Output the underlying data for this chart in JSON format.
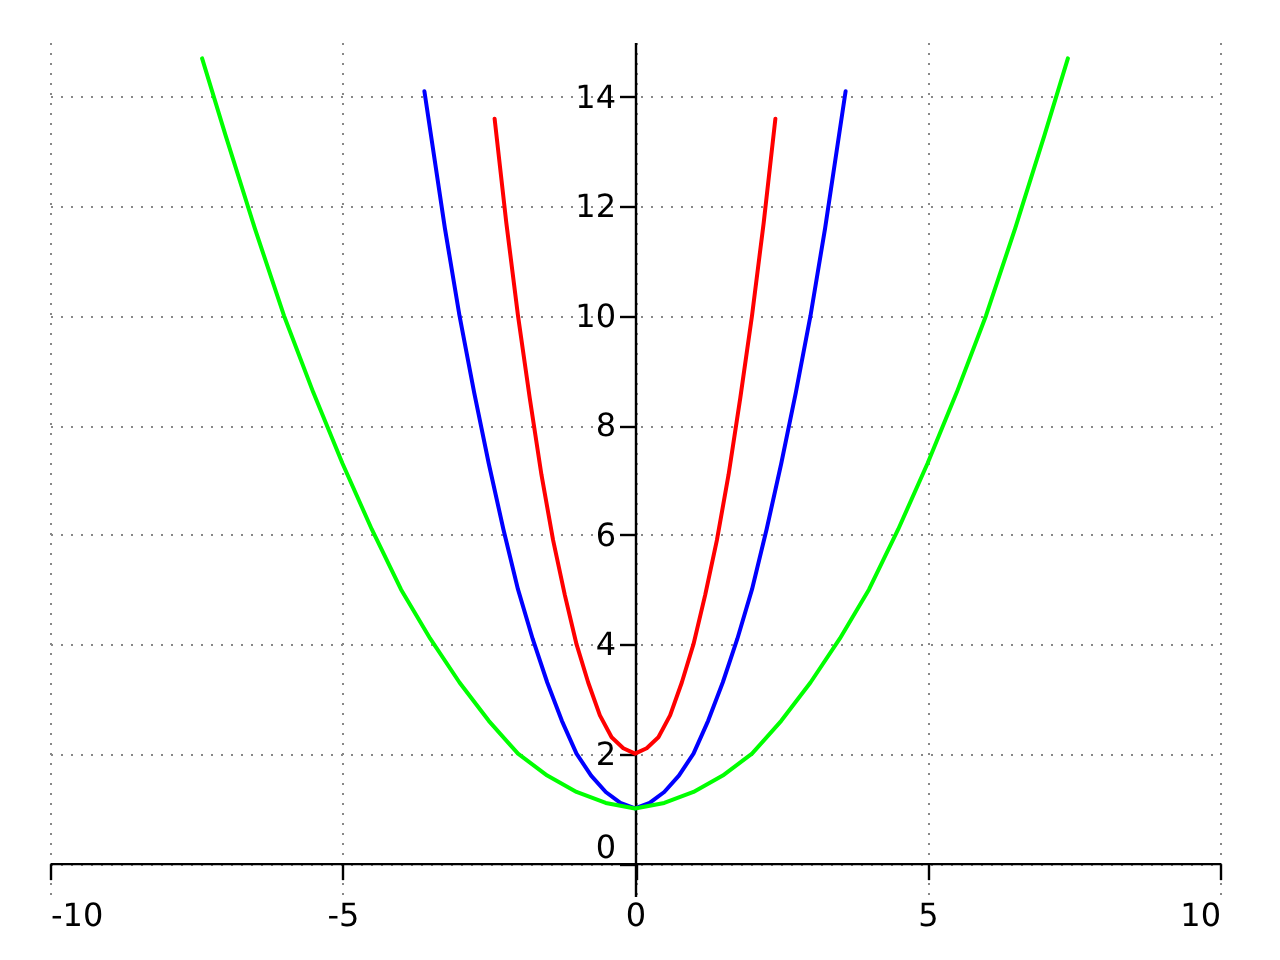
{
  "chart_data": {
    "type": "line",
    "grid": true,
    "xlim": [
      -10,
      10
    ],
    "xticks": [
      -10,
      -5,
      0,
      5,
      10
    ],
    "ylim": [
      -0.6,
      15
    ],
    "yticks": [
      0,
      2,
      4,
      6,
      8,
      10,
      12,
      14
    ],
    "series": [
      {
        "color": "#ff0000",
        "x": [
          -2.4,
          -2.2,
          -2,
          -1.8,
          -1.6,
          -1.4,
          -1.2,
          -1,
          -0.8,
          -0.6,
          -0.4,
          -0.2,
          0,
          0.2,
          0.4,
          0.6,
          0.8,
          1,
          1.2,
          1.4,
          1.6,
          1.8,
          2,
          2.2,
          2.4
        ],
        "values": [
          13.6,
          11.7,
          10,
          8.5,
          7.1,
          5.9,
          4.9,
          4,
          3.3,
          2.7,
          2.3,
          2.1,
          2,
          2.1,
          2.3,
          2.7,
          3.3,
          4,
          4.9,
          5.9,
          7.1,
          8.5,
          10,
          11.7,
          13.6
        ]
      },
      {
        "color": "#0000ff",
        "x": [
          -3.6,
          -3.25,
          -3,
          -2.75,
          -2.5,
          -2.25,
          -2,
          -1.75,
          -1.5,
          -1.25,
          -1,
          -0.75,
          -0.5,
          -0.25,
          0,
          0.25,
          0.5,
          0.75,
          1,
          1.25,
          1.5,
          1.75,
          2,
          2.25,
          2.5,
          2.75,
          3,
          3.25,
          3.6
        ],
        "values": [
          14.1,
          11.6,
          10,
          8.6,
          7.3,
          6.1,
          5,
          4.1,
          3.3,
          2.6,
          2,
          1.6,
          1.3,
          1.1,
          1,
          1.1,
          1.3,
          1.6,
          2,
          2.6,
          3.3,
          4.1,
          5,
          6.1,
          7.3,
          8.6,
          10,
          11.6,
          14.1
        ]
      },
      {
        "color": "#00ff00",
        "x": [
          -7.4,
          -7,
          -6.5,
          -6,
          -5.5,
          -5,
          -4.5,
          -4,
          -3.5,
          -3,
          -2.5,
          -2,
          -1.5,
          -1,
          -0.5,
          0,
          0.5,
          1,
          1.5,
          2,
          2.5,
          3,
          3.5,
          4,
          4.5,
          5,
          5.5,
          6,
          6.5,
          7,
          7.4
        ],
        "values": [
          14.7,
          13.3,
          11.6,
          10,
          8.6,
          7.3,
          6.1,
          5,
          4.1,
          3.3,
          2.6,
          2,
          1.6,
          1.3,
          1.1,
          1,
          1.1,
          1.3,
          1.6,
          2,
          2.6,
          3.3,
          4.1,
          5,
          6.1,
          7.3,
          8.6,
          10,
          11.6,
          13.3,
          14.7
        ]
      }
    ]
  }
}
